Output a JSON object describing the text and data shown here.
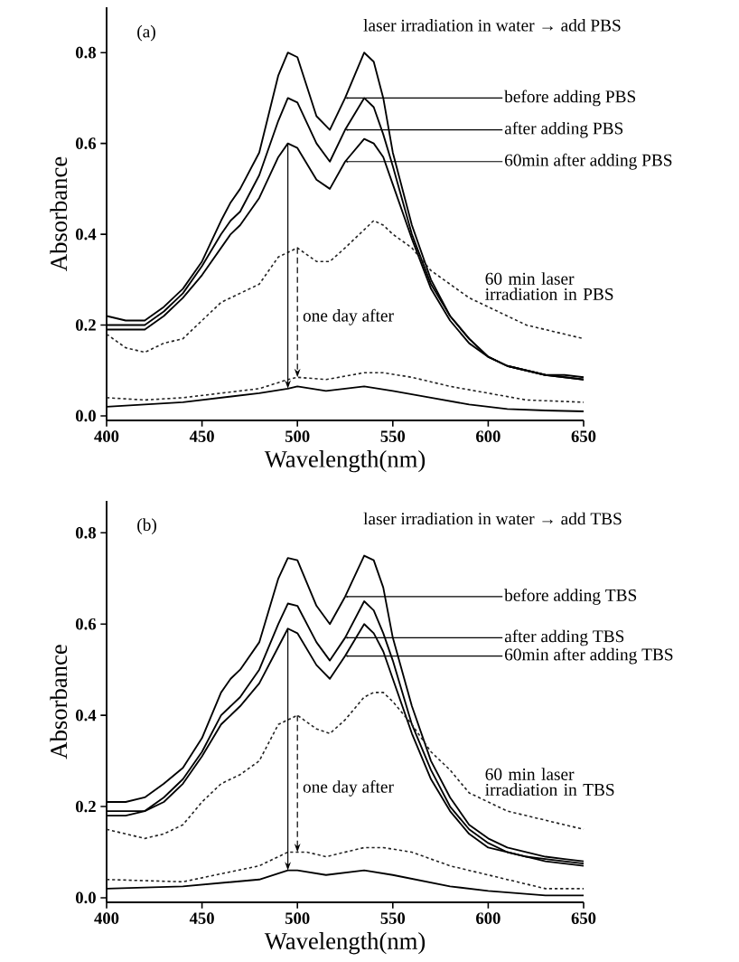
{
  "chart_data": [
    {
      "type": "line",
      "xlabel": "Wavelength(nm)",
      "ylabel": "Absorbance",
      "xlim": [
        400,
        650
      ],
      "ylim": [
        -0.01,
        0.9
      ],
      "xticks": [
        400,
        450,
        500,
        550,
        600,
        650
      ],
      "yticks": [
        {
          "value": 0,
          "label": "0.0"
        },
        {
          "value": 0.2,
          "label": "0.2"
        },
        {
          "value": 0.4,
          "label": "0.4"
        },
        {
          "value": 0.6,
          "label": "0.6"
        },
        {
          "value": 0.8,
          "label": "0.8"
        }
      ],
      "annotations": [
        "(a)",
        "laser irradiation in water → add PBS",
        "one day after"
      ],
      "series": [
        {
          "name": "before adding PBS",
          "color": "#000000",
          "line_style": "solid",
          "x": [
            400,
            410,
            420,
            430,
            440,
            450,
            460,
            465,
            470,
            480,
            490,
            495,
            500,
            510,
            517,
            525,
            535,
            540,
            545,
            550,
            560,
            570,
            580,
            590,
            600,
            610,
            620,
            630,
            640,
            650
          ],
          "values": [
            0.22,
            0.21,
            0.21,
            0.24,
            0.28,
            0.34,
            0.43,
            0.47,
            0.5,
            0.58,
            0.75,
            0.8,
            0.79,
            0.66,
            0.63,
            0.7,
            0.8,
            0.78,
            0.7,
            0.58,
            0.42,
            0.3,
            0.22,
            0.17,
            0.13,
            0.11,
            0.1,
            0.09,
            0.09,
            0.085
          ]
        },
        {
          "name": "after adding PBS",
          "color": "#000000",
          "line_style": "solid",
          "x": [
            400,
            410,
            420,
            430,
            440,
            450,
            460,
            465,
            470,
            480,
            490,
            495,
            500,
            510,
            517,
            525,
            535,
            540,
            545,
            550,
            560,
            570,
            580,
            590,
            600,
            610,
            620,
            630,
            640,
            650
          ],
          "values": [
            0.2,
            0.2,
            0.2,
            0.23,
            0.27,
            0.33,
            0.4,
            0.43,
            0.45,
            0.53,
            0.65,
            0.7,
            0.69,
            0.6,
            0.56,
            0.63,
            0.7,
            0.68,
            0.62,
            0.55,
            0.4,
            0.29,
            0.22,
            0.17,
            0.13,
            0.11,
            0.1,
            0.09,
            0.085,
            0.08
          ]
        },
        {
          "name": "60min after adding PBS",
          "color": "#000000",
          "line_style": "solid",
          "x": [
            400,
            410,
            420,
            430,
            440,
            450,
            460,
            465,
            470,
            480,
            490,
            495,
            500,
            510,
            517,
            525,
            535,
            540,
            545,
            550,
            560,
            570,
            580,
            590,
            600,
            610,
            620,
            630,
            640,
            650
          ],
          "values": [
            0.19,
            0.19,
            0.19,
            0.22,
            0.26,
            0.31,
            0.37,
            0.4,
            0.42,
            0.48,
            0.57,
            0.6,
            0.59,
            0.52,
            0.5,
            0.56,
            0.61,
            0.6,
            0.57,
            0.51,
            0.39,
            0.28,
            0.21,
            0.16,
            0.13,
            0.11,
            0.1,
            0.09,
            0.085,
            0.08
          ]
        },
        {
          "name": "60 min laser irradiation in PBS",
          "color": "#222222",
          "line_style": "dashed",
          "x": [
            400,
            410,
            420,
            430,
            440,
            450,
            460,
            465,
            470,
            480,
            490,
            495,
            500,
            510,
            517,
            525,
            535,
            540,
            545,
            550,
            560,
            570,
            580,
            590,
            600,
            610,
            620,
            630,
            640,
            650
          ],
          "values": [
            0.18,
            0.15,
            0.14,
            0.16,
            0.17,
            0.21,
            0.25,
            0.26,
            0.27,
            0.29,
            0.35,
            0.36,
            0.37,
            0.34,
            0.34,
            0.37,
            0.41,
            0.43,
            0.42,
            0.4,
            0.37,
            0.32,
            0.29,
            0.26,
            0.24,
            0.22,
            0.2,
            0.19,
            0.18,
            0.17
          ]
        },
        {
          "color": "#000000",
          "line_style": "solid",
          "x": [
            400,
            420,
            440,
            460,
            480,
            495,
            500,
            515,
            535,
            550,
            570,
            590,
            610,
            630,
            650
          ],
          "values": [
            0.02,
            0.025,
            0.03,
            0.04,
            0.05,
            0.06,
            0.065,
            0.055,
            0.065,
            0.055,
            0.04,
            0.025,
            0.015,
            0.012,
            0.01
          ]
        },
        {
          "color": "#222222",
          "line_style": "dashed",
          "x": [
            400,
            420,
            440,
            460,
            480,
            495,
            500,
            515,
            535,
            545,
            560,
            580,
            600,
            620,
            650
          ],
          "values": [
            0.04,
            0.035,
            0.04,
            0.05,
            0.06,
            0.08,
            0.085,
            0.08,
            0.095,
            0.095,
            0.085,
            0.065,
            0.05,
            0.035,
            0.03
          ]
        }
      ]
    },
    {
      "type": "line",
      "xlabel": "Wavelength(nm)",
      "ylabel": "Absorbance",
      "xlim": [
        400,
        650
      ],
      "ylim": [
        -0.01,
        0.87
      ],
      "xticks": [
        400,
        450,
        500,
        550,
        600,
        650
      ],
      "yticks": [
        {
          "value": 0,
          "label": "0.0"
        },
        {
          "value": 0.2,
          "label": "0.2"
        },
        {
          "value": 0.4,
          "label": "0.4"
        },
        {
          "value": 0.6,
          "label": "0.6"
        },
        {
          "value": 0.8,
          "label": "0.8"
        }
      ],
      "annotations": [
        "(b)",
        "laser irradiation in water → add TBS",
        "one day after"
      ],
      "series": [
        {
          "name": "before adding TBS",
          "color": "#000000",
          "line_style": "solid",
          "x": [
            400,
            410,
            420,
            430,
            440,
            450,
            460,
            465,
            470,
            480,
            490,
            495,
            500,
            510,
            517,
            525,
            535,
            540,
            545,
            550,
            560,
            570,
            580,
            590,
            600,
            610,
            620,
            630,
            640,
            650
          ],
          "values": [
            0.21,
            0.21,
            0.22,
            0.25,
            0.285,
            0.35,
            0.45,
            0.48,
            0.5,
            0.56,
            0.7,
            0.745,
            0.74,
            0.64,
            0.6,
            0.66,
            0.75,
            0.74,
            0.68,
            0.57,
            0.42,
            0.3,
            0.22,
            0.16,
            0.13,
            0.11,
            0.1,
            0.09,
            0.085,
            0.08
          ]
        },
        {
          "name": "after adding TBS",
          "color": "#000000",
          "line_style": "solid",
          "x": [
            400,
            410,
            420,
            430,
            440,
            450,
            460,
            465,
            470,
            480,
            490,
            495,
            500,
            510,
            517,
            525,
            535,
            540,
            545,
            550,
            560,
            570,
            580,
            590,
            600,
            610,
            620,
            630,
            640,
            650
          ],
          "values": [
            0.19,
            0.19,
            0.19,
            0.22,
            0.26,
            0.32,
            0.4,
            0.42,
            0.44,
            0.5,
            0.6,
            0.645,
            0.64,
            0.56,
            0.52,
            0.57,
            0.65,
            0.63,
            0.58,
            0.52,
            0.38,
            0.28,
            0.2,
            0.15,
            0.12,
            0.1,
            0.09,
            0.085,
            0.08,
            0.075
          ]
        },
        {
          "name": "60min after adding TBS",
          "color": "#000000",
          "line_style": "solid",
          "x": [
            400,
            410,
            420,
            430,
            440,
            450,
            460,
            465,
            470,
            480,
            490,
            495,
            500,
            510,
            517,
            525,
            535,
            540,
            545,
            550,
            560,
            570,
            580,
            590,
            600,
            610,
            620,
            630,
            640,
            650
          ],
          "values": [
            0.18,
            0.18,
            0.19,
            0.21,
            0.25,
            0.31,
            0.38,
            0.4,
            0.42,
            0.47,
            0.55,
            0.59,
            0.58,
            0.51,
            0.48,
            0.53,
            0.6,
            0.58,
            0.54,
            0.48,
            0.36,
            0.26,
            0.19,
            0.14,
            0.11,
            0.1,
            0.09,
            0.08,
            0.075,
            0.07
          ]
        },
        {
          "name": "60 min laser irradiation in TBS",
          "color": "#222222",
          "line_style": "dashed",
          "x": [
            400,
            410,
            420,
            430,
            440,
            450,
            460,
            465,
            470,
            480,
            490,
            495,
            500,
            510,
            517,
            525,
            535,
            540,
            545,
            550,
            560,
            570,
            580,
            590,
            600,
            610,
            620,
            630,
            640,
            650
          ],
          "values": [
            0.15,
            0.14,
            0.13,
            0.14,
            0.16,
            0.21,
            0.25,
            0.26,
            0.27,
            0.3,
            0.38,
            0.39,
            0.4,
            0.37,
            0.36,
            0.39,
            0.44,
            0.45,
            0.45,
            0.43,
            0.38,
            0.32,
            0.28,
            0.23,
            0.21,
            0.19,
            0.18,
            0.17,
            0.16,
            0.15
          ]
        },
        {
          "color": "#000000",
          "line_style": "solid",
          "x": [
            400,
            440,
            480,
            495,
            500,
            515,
            535,
            550,
            580,
            600,
            630,
            650
          ],
          "values": [
            0.02,
            0.025,
            0.04,
            0.06,
            0.06,
            0.05,
            0.06,
            0.05,
            0.025,
            0.015,
            0.005,
            0.005
          ]
        },
        {
          "color": "#222222",
          "line_style": "dashed",
          "x": [
            400,
            440,
            480,
            495,
            500,
            505,
            515,
            535,
            545,
            560,
            580,
            600,
            630,
            650
          ],
          "values": [
            0.04,
            0.035,
            0.07,
            0.1,
            0.1,
            0.1,
            0.09,
            0.11,
            0.11,
            0.1,
            0.07,
            0.05,
            0.02,
            0.02
          ]
        }
      ]
    }
  ]
}
